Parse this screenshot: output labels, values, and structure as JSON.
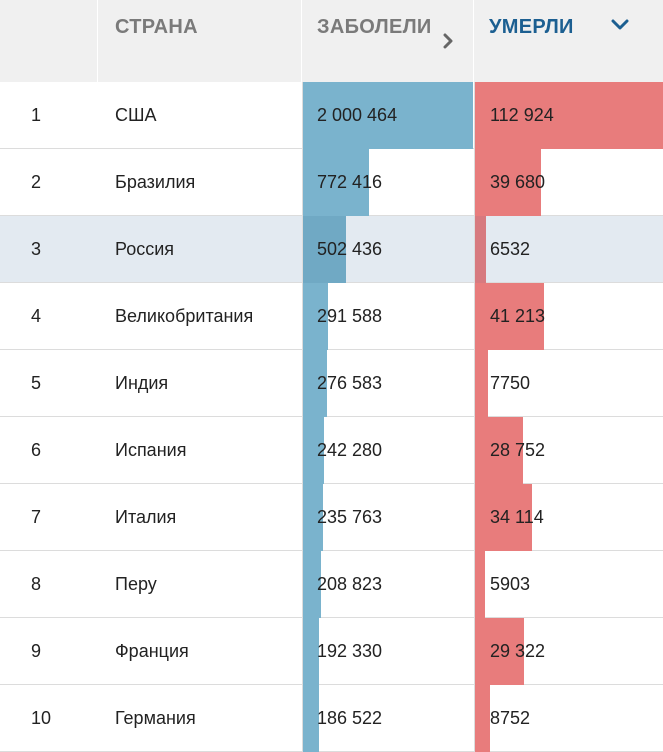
{
  "header": {
    "country_label": "СТРАНА",
    "cases_label": "ЗАБОЛЕЛИ",
    "deaths_label": "УМЕРЛИ"
  },
  "colors": {
    "cases_bar": "#7ab3cd",
    "deaths_bar": "#e87c7c",
    "active_sort": "#1c5f91",
    "highlight_row": "#e3eaf1"
  },
  "icons": {
    "cases_sort": "chevron-right-icon",
    "deaths_sort": "chevron-down-icon"
  },
  "highlighted_country": "Россия",
  "chart_data": {
    "type": "table",
    "columns": [
      "",
      "СТРАНА",
      "ЗАБОЛЕЛИ",
      "УМЕРЛИ"
    ],
    "sorted_by": "УМЕРЛИ",
    "rows": [
      {
        "rank": "1",
        "country": "США",
        "cases": 2000464,
        "cases_label": "2 000 464",
        "deaths": 112924,
        "deaths_label": "112 924"
      },
      {
        "rank": "2",
        "country": "Бразилия",
        "cases": 772416,
        "cases_label": "772 416",
        "deaths": 39680,
        "deaths_label": "39 680"
      },
      {
        "rank": "3",
        "country": "Россия",
        "cases": 502436,
        "cases_label": "502 436",
        "deaths": 6532,
        "deaths_label": "6532"
      },
      {
        "rank": "4",
        "country": "Великобритания",
        "cases": 291588,
        "cases_label": "291 588",
        "deaths": 41213,
        "deaths_label": "41 213"
      },
      {
        "rank": "5",
        "country": "Индия",
        "cases": 276583,
        "cases_label": "276 583",
        "deaths": 7750,
        "deaths_label": "7750"
      },
      {
        "rank": "6",
        "country": "Испания",
        "cases": 242280,
        "cases_label": "242 280",
        "deaths": 28752,
        "deaths_label": "28 752"
      },
      {
        "rank": "7",
        "country": "Италия",
        "cases": 235763,
        "cases_label": "235 763",
        "deaths": 34114,
        "deaths_label": "34 114"
      },
      {
        "rank": "8",
        "country": "Перу",
        "cases": 208823,
        "cases_label": "208 823",
        "deaths": 5903,
        "deaths_label": "5903"
      },
      {
        "rank": "9",
        "country": "Франция",
        "cases": 192330,
        "cases_label": "192 330",
        "deaths": 29322,
        "deaths_label": "29 322"
      },
      {
        "rank": "10",
        "country": "Германия",
        "cases": 186522,
        "cases_label": "186 522",
        "deaths": 8752,
        "deaths_label": "8752"
      }
    ]
  }
}
